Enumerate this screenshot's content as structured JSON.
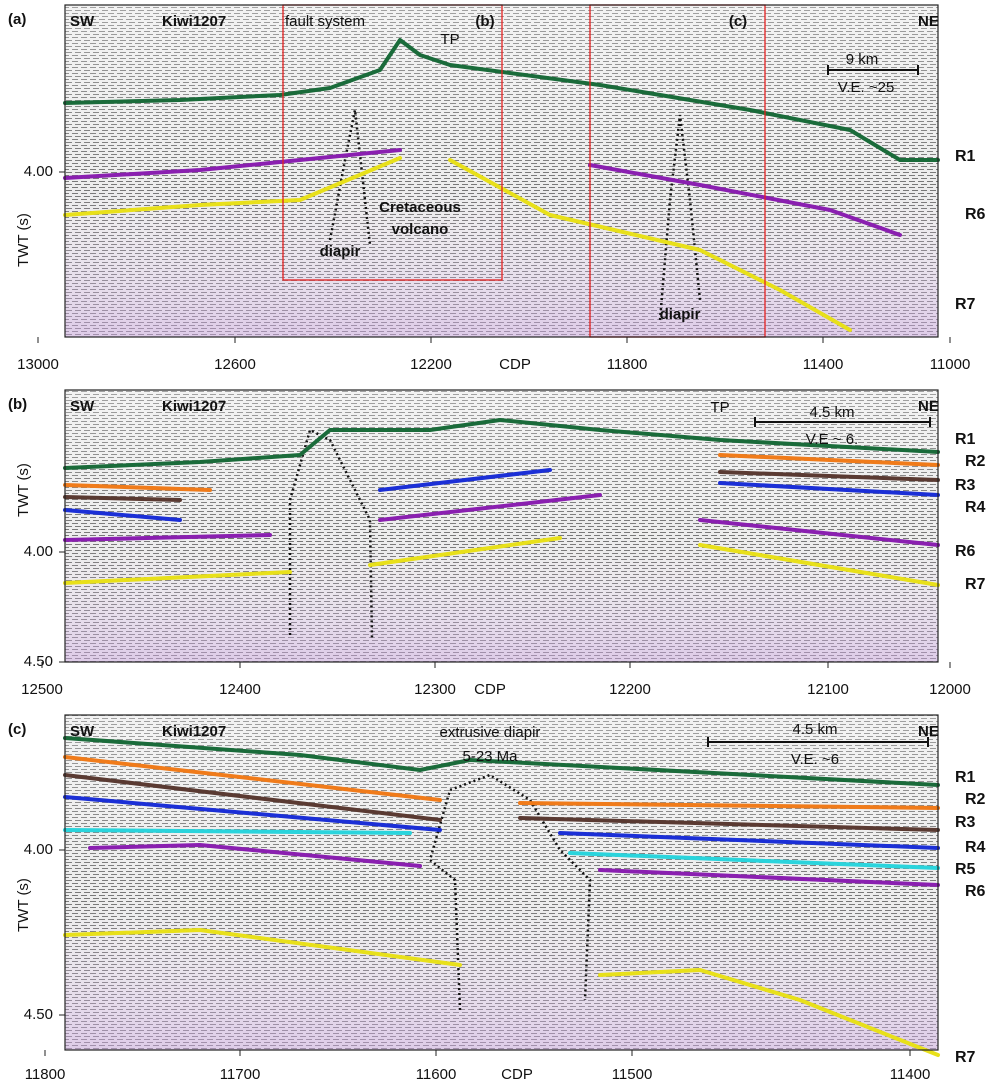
{
  "panels": [
    {
      "label": "(a)",
      "sw": "SW",
      "ne": "NE",
      "line": "Kiwi1207",
      "annotations": [
        "fault system",
        "TP",
        "(b)",
        "(c)",
        "Cretaceous",
        "volcano",
        "diapir",
        "diapir"
      ],
      "scale": [
        "9 km",
        "V.E. ~25"
      ],
      "y_title": "TWT (s)",
      "y_ticks": [
        "4.00"
      ],
      "x_title": "CDP",
      "x_ticks": [
        "13000",
        "12600",
        "12200",
        "11800",
        "11400",
        "11000"
      ],
      "horizons": [
        "R1",
        "R6",
        "R7"
      ]
    },
    {
      "label": "(b)",
      "sw": "SW",
      "ne": "NE",
      "line": "Kiwi1207",
      "annotations": [
        "TP"
      ],
      "scale": [
        "4.5 km",
        "V.E ~ 6."
      ],
      "y_title": "TWT (s)",
      "y_ticks": [
        "4.00",
        "4.50"
      ],
      "x_title": "CDP",
      "x_ticks": [
        "12500",
        "12400",
        "12300",
        "12200",
        "12100",
        "12000"
      ],
      "horizons": [
        "R1",
        "R2",
        "R3",
        "R4",
        "R6",
        "R7"
      ]
    },
    {
      "label": "(c)",
      "sw": "SW",
      "ne": "NE",
      "line": "Kiwi1207",
      "annotations": [
        "extrusive diapir",
        "5-23 Ma"
      ],
      "scale": [
        "4.5 km",
        "V.E. ~6"
      ],
      "y_title": "TWT (s)",
      "y_ticks": [
        "4.00",
        "4.50"
      ],
      "x_title": "CDP",
      "x_ticks": [
        "11800",
        "11700",
        "11600",
        "11500",
        "11400"
      ],
      "horizons": [
        "R1",
        "R2",
        "R3",
        "R4",
        "R5",
        "R6",
        "R7"
      ]
    }
  ]
}
